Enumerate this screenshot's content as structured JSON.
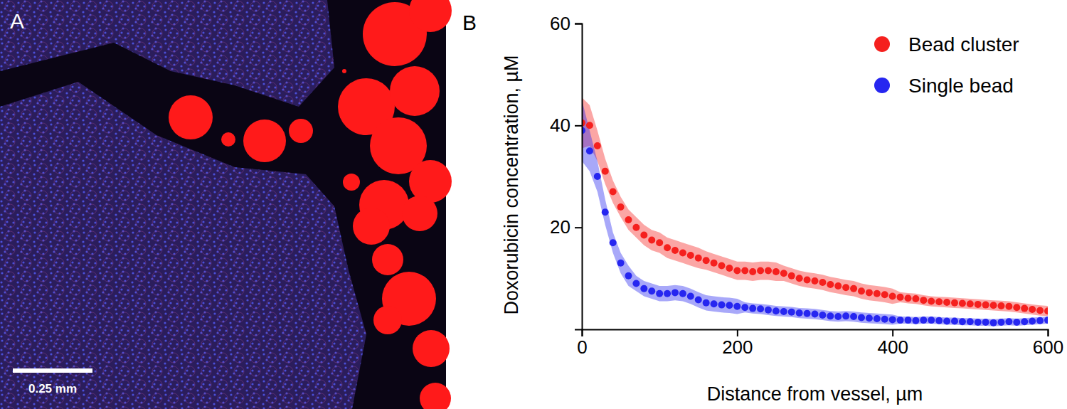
{
  "image": {
    "label": "A",
    "scale_bar": "0.25 mm"
  },
  "chart_data": {
    "type": "scatter",
    "title": "B",
    "x_label": "Distance from vessel, µm",
    "y_label": "Doxorubicin concentration, µM",
    "xlim": [
      0,
      600
    ],
    "ylim": [
      0,
      60
    ],
    "xticks": [
      0,
      200,
      400,
      600
    ],
    "yticks": [
      20,
      40,
      60
    ],
    "legend": "upper right",
    "x": [
      0,
      10,
      20,
      30,
      40,
      50,
      60,
      70,
      80,
      90,
      100,
      110,
      120,
      130,
      140,
      150,
      160,
      170,
      180,
      190,
      200,
      210,
      220,
      230,
      240,
      250,
      260,
      270,
      280,
      290,
      300,
      310,
      320,
      330,
      340,
      350,
      360,
      370,
      380,
      390,
      400,
      410,
      420,
      430,
      440,
      450,
      460,
      470,
      480,
      490,
      500,
      510,
      520,
      530,
      540,
      550,
      560,
      570,
      580,
      590,
      600
    ],
    "series": [
      {
        "name": "Bead cluster",
        "color": "#f5201e",
        "marker": "circle",
        "values": [
          40.5,
          40,
          36,
          31,
          27,
          24,
          21.5,
          20,
          18.5,
          17.5,
          17,
          16,
          15.5,
          15,
          14.5,
          14,
          13.5,
          13,
          12.5,
          12,
          11.5,
          11.5,
          11.3,
          11.5,
          11.5,
          11.3,
          11,
          10.5,
          10,
          9.7,
          9.5,
          9.2,
          8.8,
          8.5,
          8.2,
          8,
          7.5,
          7.2,
          7,
          6.8,
          6.5,
          6.3,
          6.1,
          6,
          5.7,
          5.5,
          5.4,
          5.3,
          5.2,
          5.1,
          5,
          4.9,
          4.8,
          4.7,
          4.6,
          4.5,
          4.3,
          4.1,
          3.9,
          3.7,
          3.6
        ],
        "errors": [
          5,
          4,
          3,
          2.5,
          2.2,
          2,
          2,
          2,
          2,
          2,
          2,
          2,
          2,
          2,
          2,
          2,
          1.8,
          1.8,
          1.8,
          1.8,
          1.8,
          1.8,
          1.8,
          1.8,
          1.8,
          1.8,
          1.5,
          1.5,
          1.5,
          1.5,
          1.5,
          1.5,
          1.5,
          1.5,
          1.5,
          1.5,
          1.5,
          1.5,
          1.5,
          1.5,
          1.5,
          1,
          1,
          1,
          1,
          1,
          1,
          1,
          1,
          1,
          1,
          1,
          1,
          1,
          1,
          1,
          1,
          1,
          1,
          1,
          1
        ]
      },
      {
        "name": "Single bead",
        "color": "#2626f0",
        "marker": "circle",
        "values": [
          39,
          35,
          30,
          23,
          17,
          13,
          10.5,
          9,
          8,
          7.5,
          7,
          7,
          7.2,
          7,
          6.5,
          5.8,
          5.2,
          5,
          4.8,
          4.7,
          4.5,
          4.3,
          4.1,
          4,
          3.8,
          3.6,
          3.5,
          3.4,
          3.2,
          3.1,
          3,
          2.8,
          2.6,
          2.5,
          2.6,
          2.5,
          2.3,
          2.2,
          2.1,
          2,
          1.9,
          1.8,
          1.8,
          1.7,
          1.8,
          1.8,
          1.7,
          1.6,
          1.6,
          1.5,
          1.5,
          1.4,
          1.4,
          1.3,
          1.4,
          1.5,
          1.4,
          1.5,
          1.6,
          1.7,
          1.8
        ],
        "errors": [
          6,
          4,
          3,
          2.5,
          2,
          2,
          2,
          1.5,
          1.5,
          1.5,
          1.5,
          1.5,
          1.5,
          1.5,
          1.5,
          1.5,
          1.5,
          1.5,
          1.5,
          1.5,
          1.5,
          1,
          1,
          1,
          1,
          1,
          1,
          1,
          1,
          1,
          1,
          1,
          1,
          1,
          1,
          1,
          1,
          1,
          1,
          1,
          1,
          0.7,
          0.7,
          0.7,
          0.7,
          0.7,
          0.7,
          0.7,
          0.7,
          0.7,
          0.7,
          0.7,
          0.7,
          0.7,
          0.7,
          0.7,
          0.7,
          0.7,
          0.7,
          0.7,
          0.7
        ]
      }
    ]
  }
}
